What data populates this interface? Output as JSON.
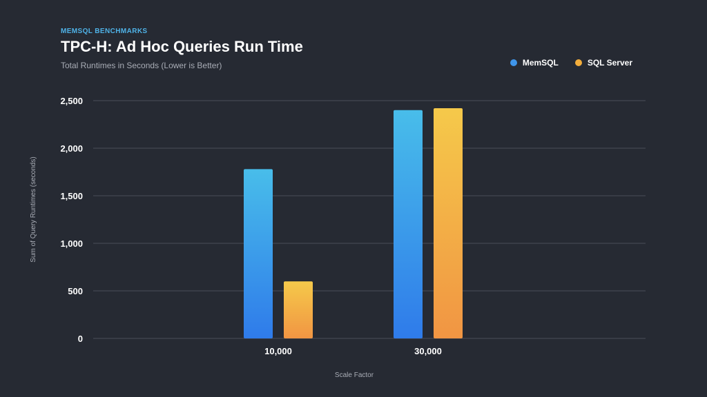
{
  "header": {
    "eyebrow": "MEMSQL BENCHMARKS",
    "title": "TPC-H: Ad Hoc Queries Run Time",
    "subtitle": "Total Runtimes in Seconds (Lower is Better)"
  },
  "legend": {
    "placement": "top-right",
    "items": [
      {
        "name": "MemSQL",
        "color": "#3f95ea"
      },
      {
        "name": "SQL Server",
        "color": "#f3ae3c"
      }
    ]
  },
  "colors": {
    "background": "#262a33",
    "gridline": "#4a4f5a",
    "memsql_top": "#48bdea",
    "memsql_bottom": "#2f7bea",
    "sqlserver_top": "#f5c94a",
    "sqlserver_bottom": "#f19543"
  },
  "chart_data": {
    "type": "bar",
    "title": "TPC-H: Ad Hoc Queries Run Time",
    "subtitle": "Total Runtimes in Seconds (Lower is Better)",
    "xlabel": "Scale Factor",
    "ylabel": "Sum of Query Runtimes (seconds)",
    "categories": [
      "10,000",
      "30,000"
    ],
    "series": [
      {
        "name": "MemSQL",
        "values": [
          1780,
          2400
        ]
      },
      {
        "name": "SQL Server",
        "values": [
          600,
          2420
        ]
      }
    ],
    "ylim": [
      0,
      2500
    ],
    "yticks": [
      0,
      500,
      1000,
      1500,
      2000,
      2500
    ],
    "ytick_labels": [
      "0",
      "500",
      "1,000",
      "1,500",
      "2,000",
      "2,500"
    ],
    "grid": true
  }
}
